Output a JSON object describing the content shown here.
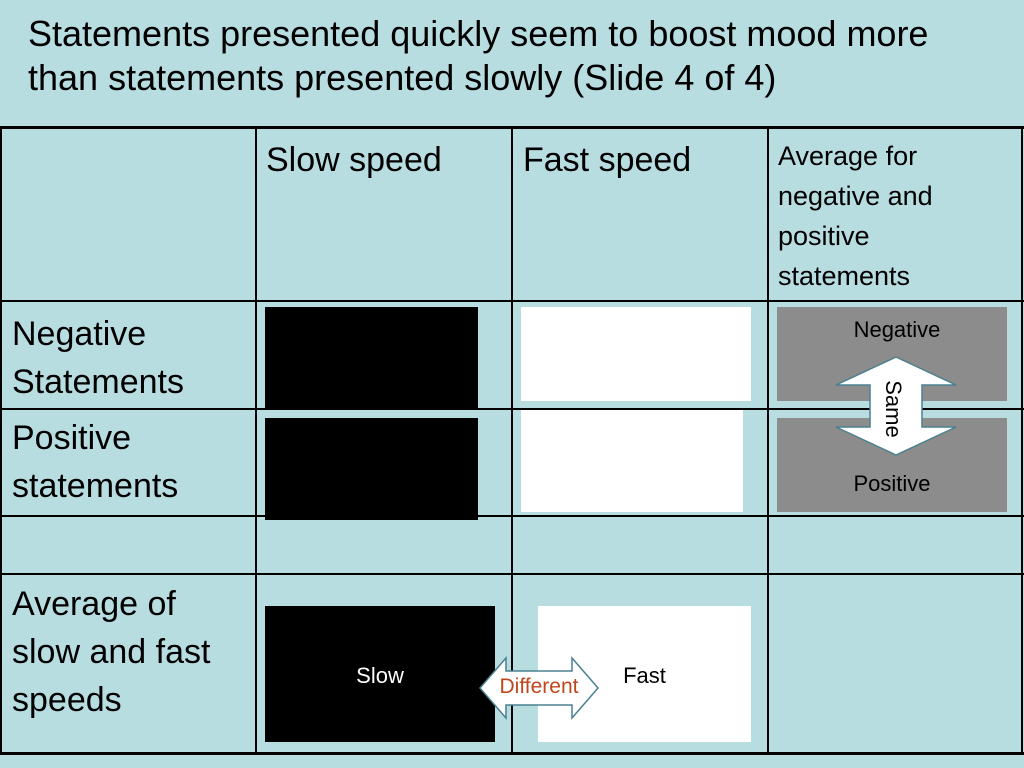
{
  "slide": {
    "title": "Statements presented quickly seem to boost mood more than statements presented slowly (Slide 4 of 4)"
  },
  "table": {
    "columns": [
      "",
      "Slow speed",
      "Fast speed",
      "Average for negative and positive statements"
    ],
    "rows": [
      {
        "label": "Negative Statements"
      },
      {
        "label": "Positive statements"
      },
      {
        "label": ""
      },
      {
        "label": "Average of slow and fast speeds"
      }
    ]
  },
  "annotations": {
    "negative": "Negative",
    "positive": "Positive",
    "same": "Same",
    "slow": "Slow",
    "fast": "Fast",
    "different": "Different"
  },
  "colors": {
    "background": "#b7dde1",
    "gray_box": "#8c8c8c",
    "different_text": "#c0471b"
  }
}
